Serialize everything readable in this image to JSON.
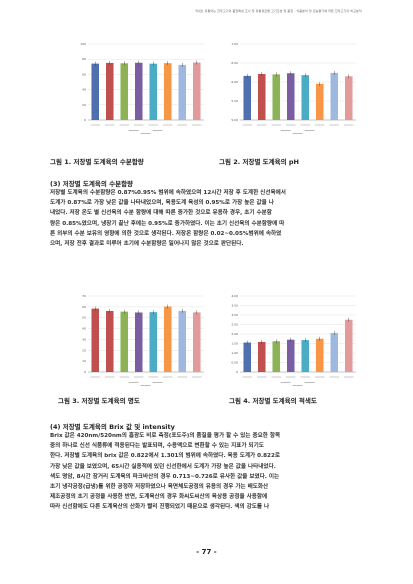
{
  "header": {
    "running_head": "국내산 유통되는 한우고기의 품질특성 조사 및 유통경로별 고기조성 및 품질 - 식품분석 및 관능평가에 따른 한우고기의 비교분석"
  },
  "figures": [
    {
      "caption": "그림 1. 저장별 도계육의 수분함량",
      "chart_data": {
        "type": "bar",
        "ylim": [
          0,
          100
        ],
        "y_ticks": [
          "100",
          "80",
          "60",
          "40",
          "20",
          "0"
        ],
        "ylabel": "",
        "categories": [
          "",
          "",
          "",
          "",
          "",
          "",
          "",
          ""
        ],
        "values": [
          74.2,
          75.1,
          74.6,
          75.3,
          74.1,
          74.8,
          72.5,
          75.6
        ],
        "colors": [
          "#4f6fae",
          "#c0504d",
          "#8db255",
          "#7a5ea1",
          "#4bacc6",
          "#f79646",
          "#9fb8e0",
          "#e39a9a"
        ]
      }
    },
    {
      "caption": "그림 2. 저장별 도계육의 pH",
      "chart_data": {
        "type": "bar",
        "ylim": [
          5.0,
          7.0
        ],
        "y_ticks": [
          "7.00",
          "6.50",
          "6.00",
          "5.50",
          "5.00"
        ],
        "ylabel": "",
        "categories": [
          "",
          "",
          "",
          "",
          "",
          "",
          "",
          ""
        ],
        "values": [
          6.16,
          6.21,
          6.2,
          6.23,
          6.18,
          5.95,
          6.24,
          6.15
        ],
        "colors": [
          "#4f6fae",
          "#c0504d",
          "#8db255",
          "#7a5ea1",
          "#4bacc6",
          "#f79646",
          "#9fb8e0",
          "#e39a9a"
        ]
      }
    },
    {
      "caption": "그림 3. 저장별 도계육의 명도",
      "chart_data": {
        "type": "bar",
        "ylim": [
          0,
          70
        ],
        "y_ticks": [
          "70",
          "60",
          "50",
          "40",
          "30",
          "20",
          "10",
          "0"
        ],
        "ylabel": "",
        "categories": [
          "",
          "",
          "",
          "",
          "",
          "",
          "",
          ""
        ],
        "values": [
          58.4,
          56.2,
          55.6,
          54.8,
          55.1,
          60.3,
          56.3,
          54.9
        ],
        "colors": [
          "#c0504d",
          "#c0504d",
          "#8db255",
          "#7a5ea1",
          "#4bacc6",
          "#f79646",
          "#9fb8e0",
          "#e39a9a"
        ]
      }
    },
    {
      "caption": "그림 4. 저장별 도계육의 적색도",
      "chart_data": {
        "type": "bar",
        "ylim": [
          0,
          4.0
        ],
        "y_ticks": [
          "4.00",
          "3.50",
          "3.00",
          "2.50",
          "2.00",
          "1.50",
          "1.00",
          "0.50",
          "0"
        ],
        "ylabel": "",
        "categories": [
          "",
          "",
          "",
          "",
          "",
          "",
          "",
          ""
        ],
        "values": [
          1.55,
          1.58,
          1.62,
          1.7,
          1.68,
          1.75,
          2.05,
          2.75
        ],
        "colors": [
          "#4f6fae",
          "#c0504d",
          "#8db255",
          "#7a5ea1",
          "#4bacc6",
          "#f79646",
          "#9fb8e0",
          "#e39a9a"
        ]
      }
    }
  ],
  "sections": [
    {
      "title": "(3) 저장별 도계육의 수분함량",
      "lines": [
        "저장별 도계육의 수분함량은 0.87%0.95% 범위에 속하였으며 12시간 저장 후 도계한 신선육에서",
        "도계가 0.87%로 가장 낮은 값을 나타내었으며, 육용도계 육성의 0.95%로 가장 높은 값을 나",
        "내었다. 저장 온도 별 신선육의 수분 함량에 대해 따른 증가한 것으로 유용하 경우, 초기 수분함",
        "량은 0.85%였으며, 냉장기 끝난 후에는 0.95%로 증가하였다. 이는 초기 신선육의 수분함량에 따",
        "른 외부의 수분 보유의 영향에 의한 것으로 생각된다. 저장온 함량은 0.02~0.05%범위에 속하였",
        "으며, 저장 전후 결과로 미루어 초기에 수분함량은 일어나지 않은 것으로 판단된다."
      ]
    },
    {
      "title": "(4) 저장별 도계육의 Brix 값 및 intensity",
      "lines": [
        "Brix 값은 420nm/520nm의 흡광도 비로 측정(포도주)의 품질을 평가 할 수 있는 중요한 항목",
        "중의 하나로 신선 식품류에 적용된다는 발표되며, 수용액으로 변환할 수 있는 지표가 되기도",
        "한다. 저장별 도계육의 brix 값은 0.822에서 1.301의 범위에 속하였다. 육용 도계가 0.822로",
        "가장 낮은 값을 보였으며, 65시간 실용적에 있던 신선한에서 도계가 가장 높은 값을 나타내었다.",
        "색도 명암, 8시간 장거리 도계육의 파크바산의 경우 0.713~0.726로 유사한 값을 보였다. 이는",
        "초기 냉각공정(급냉)를 위한 공정하 저장하였으나 육면체도공정의 유용의 경우 가는 배도화산",
        "제조공정의 초기 공정을 사용한 반면, 도계육산의 경우 화씨도씨산의 육상용 공정을 사용함에",
        "따라 신선함에도 다른 도계육산의 산화가 빨리 진행되었기 때문으로 생각된다. 색의 강도를 나"
      ]
    }
  ],
  "page_number": "- 77 -"
}
